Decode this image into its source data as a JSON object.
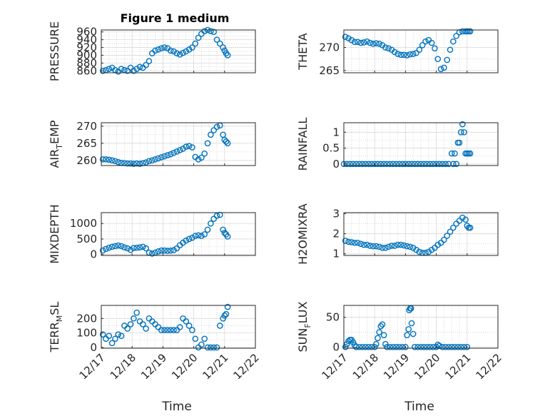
{
  "figure": {
    "title": "Figure 1 medium"
  },
  "chart_data": [
    {
      "type": "scatter",
      "ylabel": "PRESSURE",
      "xlabel": "",
      "xlim": [
        17.0,
        22.0
      ],
      "ylim": [
        855,
        965
      ],
      "yticks": [
        "960",
        "940",
        "920",
        "900",
        "880",
        "860"
      ],
      "ytick_values": [
        960,
        940,
        920,
        900,
        880,
        860
      ],
      "xticks": [
        "12/17",
        "12/18",
        "12/19",
        "12/20",
        "12/21",
        "12/22"
      ],
      "xtick_values": [
        17,
        18,
        19,
        20,
        21,
        22
      ],
      "x": [
        17.05,
        17.15,
        17.25,
        17.35,
        17.45,
        17.55,
        17.65,
        17.75,
        17.85,
        17.95,
        18.05,
        18.15,
        18.25,
        18.35,
        18.45,
        18.55,
        18.65,
        18.75,
        18.85,
        18.95,
        19.05,
        19.15,
        19.25,
        19.35,
        19.45,
        19.55,
        19.65,
        19.75,
        19.85,
        19.95,
        20.05,
        20.15,
        20.25,
        20.35,
        20.45,
        20.55,
        20.65,
        20.75,
        20.85,
        20.95,
        21.0,
        21.05,
        21.1
      ],
      "y": [
        860,
        862,
        865,
        868,
        862,
        858,
        865,
        862,
        860,
        868,
        860,
        865,
        870,
        868,
        875,
        885,
        905,
        912,
        915,
        918,
        920,
        918,
        912,
        910,
        905,
        902,
        906,
        910,
        915,
        920,
        930,
        945,
        955,
        962,
        965,
        962,
        960,
        940,
        930,
        920,
        912,
        905,
        900
      ]
    },
    {
      "type": "scatter",
      "ylabel": "THETA",
      "xlabel": "",
      "xlim": [
        17.0,
        22.0
      ],
      "ylim": [
        264.5,
        273.8
      ],
      "yticks": [
        "270",
        "265"
      ],
      "ytick_values": [
        270,
        265
      ],
      "xticks": [
        "12/17",
        "12/18",
        "12/19",
        "12/20",
        "12/21",
        "12/22"
      ],
      "xtick_values": [
        17,
        18,
        19,
        20,
        21,
        22
      ],
      "x": [
        17.05,
        17.15,
        17.25,
        17.35,
        17.45,
        17.55,
        17.65,
        17.75,
        17.85,
        17.95,
        18.05,
        18.15,
        18.25,
        18.35,
        18.45,
        18.55,
        18.65,
        18.75,
        18.85,
        18.95,
        19.05,
        19.15,
        19.25,
        19.35,
        19.45,
        19.55,
        19.65,
        19.75,
        19.85,
        19.95,
        20.05,
        20.15,
        20.25,
        20.35,
        20.45,
        20.55,
        20.65,
        20.75,
        20.85,
        20.95,
        21.0,
        21.05,
        21.1
      ],
      "y": [
        272.3,
        272.0,
        271.6,
        271.2,
        271.2,
        271.0,
        271.1,
        271.3,
        271.0,
        270.8,
        270.9,
        270.8,
        270.5,
        270.0,
        269.8,
        269.5,
        269.0,
        268.6,
        268.4,
        268.4,
        268.3,
        268.5,
        268.6,
        268.8,
        269.5,
        270.5,
        271.3,
        271.6,
        271.0,
        269.8,
        267.5,
        265.3,
        265.6,
        267.3,
        269.5,
        271.3,
        272.5,
        273.3,
        273.5,
        273.5,
        273.5,
        273.5,
        273.5
      ]
    },
    {
      "type": "scatter",
      "ylabel": "AIR",
      "ylabel_sub": "T",
      "ylabel_suffix": "EMP",
      "xlabel": "",
      "xlim": [
        17.0,
        22.0
      ],
      "ylim": [
        258.5,
        271.0
      ],
      "yticks": [
        "270",
        "265",
        "260"
      ],
      "ytick_values": [
        270,
        265,
        260
      ],
      "xticks": [
        "12/17",
        "12/18",
        "12/19",
        "12/20",
        "12/21",
        "12/22"
      ],
      "xtick_values": [
        17,
        18,
        19,
        20,
        21,
        22
      ],
      "x": [
        17.05,
        17.15,
        17.25,
        17.35,
        17.45,
        17.55,
        17.65,
        17.75,
        17.85,
        17.95,
        18.05,
        18.15,
        18.25,
        18.35,
        18.45,
        18.55,
        18.65,
        18.75,
        18.85,
        18.95,
        19.05,
        19.15,
        19.25,
        19.35,
        19.45,
        19.55,
        19.65,
        19.75,
        19.85,
        19.95,
        20.05,
        20.15,
        20.25,
        20.35,
        20.45,
        20.55,
        20.65,
        20.75,
        20.85,
        20.95,
        21.0,
        21.05,
        21.1
      ],
      "y": [
        260.3,
        260.3,
        260.2,
        260.0,
        259.8,
        259.5,
        259.3,
        259.2,
        259.1,
        259.1,
        259.0,
        259.1,
        259.0,
        259.2,
        259.4,
        259.8,
        260.0,
        260.3,
        260.6,
        260.9,
        261.2,
        261.5,
        261.8,
        262.2,
        262.6,
        263.0,
        263.4,
        264.0,
        264.2,
        263.8,
        261.0,
        260.3,
        260.8,
        262.0,
        265.0,
        267.5,
        268.8,
        269.8,
        270.2,
        267.5,
        266.0,
        265.5,
        265.0
      ]
    },
    {
      "type": "scatter",
      "ylabel": "RAINFALL",
      "xlabel": "",
      "xlim": [
        17.0,
        22.0
      ],
      "ylim": [
        -0.05,
        1.3
      ],
      "yticks": [
        "1",
        "0.5",
        "0"
      ],
      "ytick_values": [
        1,
        0.5,
        0
      ],
      "xticks": [
        "12/17",
        "12/18",
        "12/19",
        "12/20",
        "12/21",
        "12/22"
      ],
      "xtick_values": [
        17,
        18,
        19,
        20,
        21,
        22
      ],
      "x": [
        17.0,
        17.1,
        17.2,
        17.3,
        17.4,
        17.5,
        17.6,
        17.7,
        17.8,
        17.9,
        18.0,
        18.1,
        18.2,
        18.3,
        18.4,
        18.5,
        18.6,
        18.7,
        18.8,
        18.9,
        19.0,
        19.1,
        19.2,
        19.3,
        19.4,
        19.5,
        19.6,
        19.7,
        19.8,
        19.9,
        20.0,
        20.1,
        20.2,
        20.3,
        20.4,
        20.5,
        20.55,
        20.6,
        20.65,
        20.7,
        20.75,
        20.8,
        20.85,
        20.9,
        20.95,
        21.0,
        21.05,
        21.1
      ],
      "y": [
        0,
        0,
        0,
        0,
        0,
        0,
        0,
        0,
        0,
        0,
        0,
        0,
        0,
        0,
        0,
        0,
        0,
        0,
        0,
        0,
        0,
        0,
        0,
        0,
        0,
        0,
        0,
        0,
        0,
        0,
        0,
        0,
        0,
        0,
        0,
        0.33,
        0,
        0.33,
        0,
        0.67,
        0.67,
        1.0,
        1.25,
        1.0,
        0.33,
        0.33,
        0.33,
        0.33
      ]
    },
    {
      "type": "scatter",
      "ylabel": "MIXDEPTH",
      "xlabel": "",
      "xlim": [
        17.0,
        22.0
      ],
      "ylim": [
        -30,
        1350
      ],
      "yticks": [
        "1000",
        "500",
        "0"
      ],
      "ytick_values": [
        1000,
        500,
        0
      ],
      "xticks": [
        "12/17",
        "12/18",
        "12/19",
        "12/20",
        "12/21",
        "12/22"
      ],
      "xtick_values": [
        17,
        18,
        19,
        20,
        21,
        22
      ],
      "x": [
        17.05,
        17.15,
        17.25,
        17.35,
        17.45,
        17.55,
        17.65,
        17.75,
        17.85,
        17.95,
        18.05,
        18.15,
        18.25,
        18.35,
        18.45,
        18.55,
        18.65,
        18.75,
        18.85,
        18.95,
        19.05,
        19.15,
        19.25,
        19.35,
        19.45,
        19.55,
        19.65,
        19.75,
        19.85,
        19.95,
        20.05,
        20.15,
        20.25,
        20.35,
        20.45,
        20.55,
        20.65,
        20.75,
        20.85,
        20.95,
        21.0,
        21.05,
        21.1
      ],
      "y": [
        130,
        180,
        220,
        250,
        270,
        290,
        270,
        230,
        200,
        150,
        210,
        220,
        230,
        250,
        200,
        60,
        30,
        60,
        100,
        130,
        130,
        120,
        125,
        140,
        200,
        300,
        380,
        450,
        500,
        540,
        600,
        620,
        600,
        650,
        800,
        1000,
        1150,
        1250,
        1280,
        800,
        700,
        650,
        580
      ]
    },
    {
      "type": "scatter",
      "ylabel": "H2OMIXRA",
      "xlabel": "",
      "xlim": [
        17.0,
        22.0
      ],
      "ylim": [
        0.92,
        3.05
      ],
      "yticks": [
        "3",
        "2",
        "1"
      ],
      "ytick_values": [
        3,
        2,
        1
      ],
      "xticks": [
        "12/17",
        "12/18",
        "12/19",
        "12/20",
        "12/21",
        "12/22"
      ],
      "xtick_values": [
        17,
        18,
        19,
        20,
        21,
        22
      ],
      "x": [
        17.05,
        17.15,
        17.25,
        17.35,
        17.45,
        17.55,
        17.65,
        17.75,
        17.85,
        17.95,
        18.05,
        18.15,
        18.25,
        18.35,
        18.45,
        18.55,
        18.65,
        18.75,
        18.85,
        18.95,
        19.05,
        19.15,
        19.25,
        19.35,
        19.45,
        19.55,
        19.65,
        19.75,
        19.85,
        19.95,
        20.05,
        20.15,
        20.25,
        20.35,
        20.45,
        20.55,
        20.65,
        20.75,
        20.85,
        20.95,
        21.0,
        21.05,
        21.1
      ],
      "y": [
        1.65,
        1.6,
        1.58,
        1.55,
        1.55,
        1.5,
        1.45,
        1.45,
        1.4,
        1.38,
        1.38,
        1.35,
        1.3,
        1.3,
        1.35,
        1.4,
        1.4,
        1.45,
        1.45,
        1.42,
        1.38,
        1.35,
        1.3,
        1.2,
        1.1,
        1.05,
        1.05,
        1.1,
        1.2,
        1.3,
        1.45,
        1.55,
        1.7,
        1.9,
        2.1,
        2.3,
        2.5,
        2.65,
        2.8,
        2.7,
        2.4,
        2.3,
        2.3
      ]
    },
    {
      "type": "scatter",
      "ylabel": "TERR",
      "ylabel_sub": "M",
      "ylabel_suffix": "SL",
      "xlabel": "Time",
      "xlim": [
        17.0,
        22.0
      ],
      "ylim": [
        -5,
        290
      ],
      "yticks": [
        "200",
        "100",
        "0"
      ],
      "ytick_values": [
        200,
        100,
        0
      ],
      "xticks": [
        "12/17",
        "12/18",
        "12/19",
        "12/20",
        "12/21",
        "12/22"
      ],
      "xtick_values": [
        17,
        18,
        19,
        20,
        21,
        22
      ],
      "x": [
        17.05,
        17.15,
        17.25,
        17.35,
        17.45,
        17.55,
        17.65,
        17.75,
        17.85,
        17.95,
        18.05,
        18.15,
        18.25,
        18.35,
        18.45,
        18.55,
        18.65,
        18.75,
        18.85,
        18.95,
        19.05,
        19.15,
        19.25,
        19.35,
        19.45,
        19.55,
        19.65,
        19.75,
        19.85,
        19.95,
        20.05,
        20.15,
        20.25,
        20.35,
        20.45,
        20.55,
        20.65,
        20.75,
        20.85,
        20.95,
        21.0,
        21.05,
        21.1
      ],
      "y": [
        90,
        60,
        80,
        30,
        60,
        90,
        80,
        150,
        130,
        160,
        200,
        240,
        180,
        160,
        130,
        200,
        180,
        160,
        140,
        120,
        120,
        120,
        120,
        120,
        120,
        140,
        200,
        180,
        150,
        120,
        60,
        0,
        20,
        60,
        0,
        0,
        0,
        0,
        150,
        200,
        220,
        230,
        280
      ]
    },
    {
      "type": "scatter",
      "ylabel": "SUN",
      "ylabel_sub": "F",
      "ylabel_suffix": "LUX",
      "xlabel": "Time",
      "xlim": [
        17.0,
        22.0
      ],
      "ylim": [
        -2,
        70
      ],
      "yticks": [
        "50",
        "0"
      ],
      "ytick_values": [
        50,
        0
      ],
      "xticks": [
        "12/17",
        "12/18",
        "12/19",
        "12/20",
        "12/21",
        "12/22"
      ],
      "xtick_values": [
        17,
        18,
        19,
        20,
        21,
        22
      ],
      "x": [
        17.05,
        17.1,
        17.15,
        17.2,
        17.25,
        17.3,
        17.35,
        17.4,
        17.5,
        17.6,
        17.7,
        17.8,
        17.9,
        18.0,
        18.05,
        18.1,
        18.15,
        18.2,
        18.25,
        18.3,
        18.35,
        18.4,
        18.5,
        18.6,
        18.7,
        18.8,
        18.9,
        19.0,
        19.05,
        19.1,
        19.12,
        19.15,
        19.18,
        19.2,
        19.25,
        19.3,
        19.4,
        19.5,
        19.6,
        19.7,
        19.8,
        19.9,
        20.0,
        20.05,
        20.1,
        20.2,
        20.3,
        20.4,
        20.5,
        20.6,
        20.7,
        20.8,
        20.9,
        21.0
      ],
      "y": [
        0,
        5,
        10,
        12,
        12,
        8,
        3,
        0,
        0,
        0,
        0,
        0,
        0,
        0,
        5,
        15,
        25,
        35,
        38,
        20,
        5,
        0,
        0,
        0,
        0,
        0,
        0,
        0,
        20,
        30,
        62,
        65,
        65,
        40,
        22,
        0,
        0,
        0,
        0,
        0,
        0,
        0,
        0,
        4,
        2,
        0,
        0,
        0,
        0,
        0,
        0,
        0,
        0,
        0
      ]
    }
  ]
}
